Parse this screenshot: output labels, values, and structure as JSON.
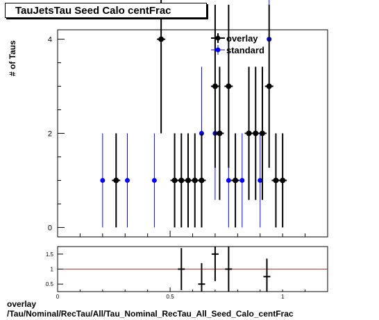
{
  "title": "TauJetsTau Seed Calo centFrac",
  "footer": {
    "line1": "overlay",
    "line2": "/Tau/Nominal/RecTau/All/Tau_Nominal_RecTau_All_Seed_Calo_centFrac"
  },
  "colors": {
    "overlay": "#000000",
    "standard": "#0000ff",
    "ratio_line": "#cc3333"
  },
  "chart_data": [
    {
      "type": "scatter",
      "title": "TauJetsTau Seed Calo centFrac",
      "xlabel": "",
      "ylabel": "# of Taus",
      "xlim": [
        0,
        1.2
      ],
      "ylim": [
        -0.2,
        4.2
      ],
      "yticks": [
        0,
        2,
        4
      ],
      "xticks": [
        "0",
        "0.5",
        "1"
      ],
      "legend_position": "top-right",
      "series": [
        {
          "name": "overlay",
          "x": [
            0.26,
            0.46,
            0.52,
            0.55,
            0.58,
            0.61,
            0.64,
            0.7,
            0.72,
            0.76,
            0.79,
            0.85,
            0.88,
            0.91,
            0.94,
            0.97,
            1.0
          ],
          "y": [
            1,
            4,
            1,
            1,
            1,
            1,
            1,
            3,
            2,
            3,
            1,
            2,
            2,
            2,
            3,
            1,
            1
          ]
        },
        {
          "name": "standard",
          "x": [
            0.2,
            0.31,
            0.43,
            0.64,
            0.7,
            0.76,
            0.82,
            0.9,
            0.94
          ],
          "y": [
            1,
            1,
            1,
            2,
            2,
            1,
            1,
            1,
            4
          ]
        }
      ]
    },
    {
      "type": "scatter",
      "title": "",
      "xlabel": "",
      "ylabel": "",
      "xlim": [
        0,
        1.2
      ],
      "ylim": [
        0.25,
        1.75
      ],
      "yticks": [
        "0.5",
        "1",
        "1.5"
      ],
      "xticks": [
        "0",
        "0.5",
        "1"
      ],
      "reference_line": 1,
      "series": [
        {
          "name": "",
          "x": [
            0.55,
            0.64,
            0.7,
            0.76,
            0.93
          ],
          "y": [
            1,
            0.5,
            1.5,
            1,
            0.75
          ],
          "err": [
            0.7,
            0.7,
            0.9,
            0.8,
            0.6
          ]
        }
      ]
    }
  ]
}
